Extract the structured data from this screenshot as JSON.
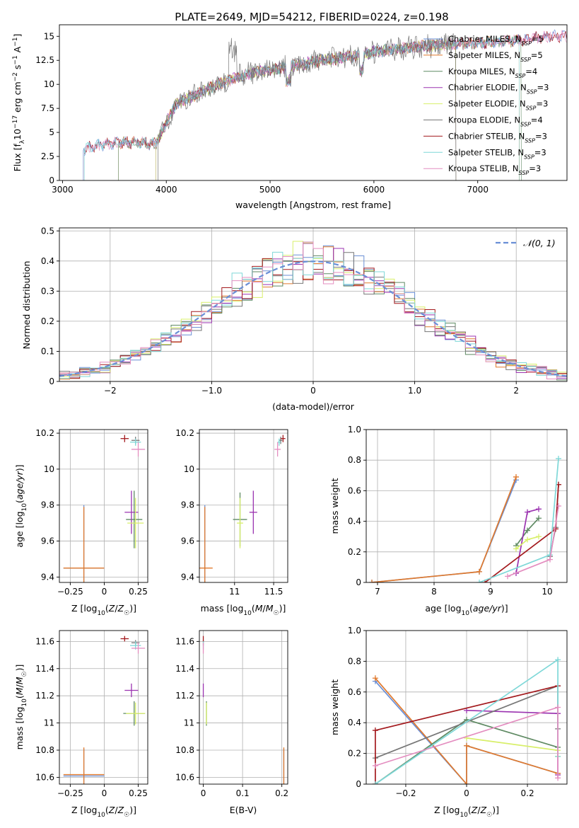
{
  "title": "PLATE=2649, MJD=54212, FIBERID=0224, z=0.198",
  "colors": [
    "#6a8fd6",
    "#e07a2e",
    "#5f8a63",
    "#9b33b0",
    "#d8ef6a",
    "#777777",
    "#a3191d",
    "#7fd8d8",
    "#e48ec0"
  ],
  "chart_data": [
    {
      "id": "spectrum",
      "type": "line",
      "xlabel": "wavelength [Angstrom, rest frame]",
      "ylabel": "Flux [f_λ 10^-17 erg cm^-2 s^-1 A^-1]",
      "xlim": [
        2970,
        7860
      ],
      "ylim": [
        0,
        16.2
      ],
      "xticks": [
        3000,
        4000,
        5000,
        6000,
        7000
      ],
      "yticks": [
        0.0,
        2.5,
        5.0,
        7.5,
        10.0,
        12.5,
        15.0
      ],
      "grid": false,
      "legend_position": "top-right",
      "profile_x": [
        3200,
        3300,
        3600,
        3900,
        4000,
        4100,
        4300,
        4500,
        4700,
        4860,
        5000,
        5200,
        5500,
        5800,
        6000,
        6300,
        6600,
        7000,
        7400,
        7700
      ],
      "profile_y": [
        3.2,
        3.6,
        4.0,
        3.8,
        6.0,
        8.0,
        9.0,
        10.0,
        10.8,
        11.3,
        11.5,
        11.9,
        12.5,
        12.9,
        13.4,
        13.8,
        14.1,
        14.3,
        14.6,
        15.0
      ],
      "series": [
        {
          "name": "Chabrier MILES, N_SSP=5",
          "start": 3200,
          "end": 7860
        },
        {
          "name": "Salpeter MILES, N_SSP=5",
          "start": 3540,
          "end": 7400
        },
        {
          "name": "Kroupa MILES, N_SSP=4",
          "start": 3540,
          "end": 7420
        },
        {
          "name": "Chabrier ELODIE, N_SSP=3",
          "start": 3900,
          "end": 6790
        },
        {
          "name": "Salpeter ELODIE, N_SSP=3",
          "start": 3900,
          "end": 6790
        },
        {
          "name": "Kroupa ELODIE, N_SSP=4",
          "start": 3920,
          "end": 6790
        },
        {
          "name": "Chabrier STELIB, N_SSP=3",
          "start": 3210,
          "end": 7860
        },
        {
          "name": "Salpeter STELIB, N_SSP=3",
          "start": 3210,
          "end": 7400
        },
        {
          "name": "Kroupa STELIB, N_SSP=3",
          "start": 3210,
          "end": 7860
        }
      ]
    },
    {
      "id": "residuals",
      "type": "histogram",
      "xlabel": "(data-model)/error",
      "ylabel": "Normed distribution",
      "xlim": [
        -2.5,
        2.5
      ],
      "ylim": [
        0,
        0.51
      ],
      "xticks": [
        -2,
        -1,
        0,
        1,
        2
      ],
      "yticks": [
        0.0,
        0.1,
        0.2,
        0.3,
        0.4,
        0.5
      ],
      "grid": true,
      "legend_position": "top-right",
      "reference_curve": {
        "name": "𝒩(0, 1)",
        "mean": 0,
        "sigma": 1
      },
      "bin_width": 0.1
    },
    {
      "id": "age-vs-Z",
      "type": "errorbar",
      "xlabel": "Z [log10(Z/Z☉)]",
      "ylabel": "age [log10(age/yr)]",
      "xlim": [
        -0.33,
        0.32
      ],
      "ylim": [
        9.37,
        10.22
      ],
      "xticks": [
        -0.25,
        0.0,
        0.25
      ],
      "yticks": [
        9.4,
        9.6,
        9.8,
        10.0,
        10.2
      ],
      "grid": true,
      "points": [
        {
          "x": -0.15,
          "y": 9.45,
          "xerr": 0.15,
          "yerr": 0.35,
          "c": 0
        },
        {
          "x": -0.15,
          "y": 9.45,
          "xerr": 0.15,
          "yerr": 0.34,
          "c": 1
        },
        {
          "x": 0.22,
          "y": 9.72,
          "xerr": 0.06,
          "yerr": 0.16,
          "c": 2
        },
        {
          "x": 0.2,
          "y": 9.76,
          "xerr": 0.05,
          "yerr": 0.12,
          "c": 3
        },
        {
          "x": 0.23,
          "y": 9.7,
          "xerr": 0.06,
          "yerr": 0.14,
          "c": 4
        },
        {
          "x": 0.23,
          "y": 10.16,
          "xerr": 0.03,
          "yerr": 0.02,
          "c": 5
        },
        {
          "x": 0.15,
          "y": 10.17,
          "xerr": 0.03,
          "yerr": 0.02,
          "c": 6
        },
        {
          "x": 0.23,
          "y": 10.15,
          "xerr": 0.04,
          "yerr": 0.02,
          "c": 7
        },
        {
          "x": 0.25,
          "y": 10.11,
          "xerr": 0.05,
          "yerr": 0.04,
          "c": 8
        }
      ]
    },
    {
      "id": "age-vs-mass",
      "type": "errorbar",
      "xlabel": "mass [log10(M/M☉)]",
      "ylabel": "",
      "xlim": [
        10.55,
        11.68
      ],
      "ylim": [
        9.37,
        10.22
      ],
      "xticks": [
        11.0,
        11.5
      ],
      "yticks": [
        9.4,
        9.6,
        9.8,
        10.0,
        10.2
      ],
      "grid": true,
      "points": [
        {
          "x": 10.62,
          "y": 9.45,
          "xerr": 0.01,
          "yerr": 0.35,
          "c": 0
        },
        {
          "x": 10.62,
          "y": 9.45,
          "xerr": 0.1,
          "yerr": 0.34,
          "c": 1
        },
        {
          "x": 11.07,
          "y": 9.72,
          "xerr": 0.09,
          "yerr": 0.15,
          "c": 2
        },
        {
          "x": 11.24,
          "y": 9.76,
          "xerr": 0.05,
          "yerr": 0.12,
          "c": 3
        },
        {
          "x": 11.07,
          "y": 9.7,
          "xerr": 0.04,
          "yerr": 0.14,
          "c": 4
        },
        {
          "x": 11.59,
          "y": 10.16,
          "xerr": 0.02,
          "yerr": 0.02,
          "c": 5
        },
        {
          "x": 11.62,
          "y": 10.17,
          "xerr": 0.03,
          "yerr": 0.02,
          "c": 6
        },
        {
          "x": 11.57,
          "y": 10.15,
          "xerr": 0.02,
          "yerr": 0.02,
          "c": 7
        },
        {
          "x": 11.55,
          "y": 10.11,
          "xerr": 0.04,
          "yerr": 0.04,
          "c": 8
        }
      ]
    },
    {
      "id": "mass-vs-Z",
      "type": "errorbar",
      "xlabel": "Z [log10(Z/Z☉)]",
      "ylabel": "mass [log10(M/M☉)]",
      "xlim": [
        -0.33,
        0.32
      ],
      "ylim": [
        10.55,
        11.68
      ],
      "xticks": [
        -0.25,
        0.0,
        0.25
      ],
      "yticks": [
        10.6,
        10.8,
        11.0,
        11.2,
        11.4,
        11.6
      ],
      "grid": true,
      "points": [
        {
          "x": -0.15,
          "y": 10.61,
          "xerr": 0.15,
          "yerr": 0.2,
          "c": 0
        },
        {
          "x": -0.15,
          "y": 10.62,
          "xerr": 0.15,
          "yerr": 0.2,
          "c": 1
        },
        {
          "x": 0.22,
          "y": 11.07,
          "xerr": 0.08,
          "yerr": 0.09,
          "c": 2
        },
        {
          "x": 0.2,
          "y": 11.24,
          "xerr": 0.05,
          "yerr": 0.05,
          "c": 3
        },
        {
          "x": 0.23,
          "y": 11.07,
          "xerr": 0.07,
          "yerr": 0.08,
          "c": 4
        },
        {
          "x": 0.23,
          "y": 11.59,
          "xerr": 0.03,
          "yerr": 0.02,
          "c": 5
        },
        {
          "x": 0.15,
          "y": 11.62,
          "xerr": 0.03,
          "yerr": 0.02,
          "c": 6
        },
        {
          "x": 0.23,
          "y": 11.57,
          "xerr": 0.04,
          "yerr": 0.03,
          "c": 7
        },
        {
          "x": 0.25,
          "y": 11.55,
          "xerr": 0.05,
          "yerr": 0.04,
          "c": 8
        }
      ]
    },
    {
      "id": "mass-vs-EBV",
      "type": "errorbar",
      "xlabel": "E(B-V)",
      "ylabel": "",
      "xlim": [
        -0.01,
        0.215
      ],
      "ylim": [
        10.55,
        11.68
      ],
      "xticks": [
        0.0,
        0.1,
        0.2
      ],
      "yticks": [
        10.6,
        10.8,
        11.0,
        11.2,
        11.4,
        11.6
      ],
      "grid": true,
      "points": [
        {
          "x": 0.205,
          "y": 10.61,
          "xerr": 0.0,
          "yerr": 0.2,
          "c": 0
        },
        {
          "x": 0.205,
          "y": 10.62,
          "xerr": 0.0,
          "yerr": 0.2,
          "c": 1
        },
        {
          "x": 0.008,
          "y": 11.07,
          "xerr": 0.0,
          "yerr": 0.09,
          "c": 2
        },
        {
          "x": 0.0,
          "y": 11.24,
          "xerr": 0.0,
          "yerr": 0.05,
          "c": 3
        },
        {
          "x": 0.008,
          "y": 11.07,
          "xerr": 0.0,
          "yerr": 0.08,
          "c": 4
        },
        {
          "x": 0.0,
          "y": 11.59,
          "xerr": 0.0,
          "yerr": 0.02,
          "c": 5
        },
        {
          "x": 0.0,
          "y": 11.62,
          "xerr": 0.0,
          "yerr": 0.02,
          "c": 6
        },
        {
          "x": 0.0,
          "y": 11.57,
          "xerr": 0.0,
          "yerr": 0.03,
          "c": 7
        },
        {
          "x": 0.0,
          "y": 11.55,
          "xerr": 0.0,
          "yerr": 0.04,
          "c": 8
        }
      ]
    },
    {
      "id": "weight-vs-age",
      "type": "line",
      "xlabel": "age [log10(age/yr)]",
      "ylabel": "mass weight",
      "xlim": [
        6.8,
        10.35
      ],
      "ylim": [
        0,
        1.0
      ],
      "xticks": [
        7,
        8,
        9,
        10
      ],
      "yticks": [
        0.0,
        0.2,
        0.4,
        0.6,
        0.8,
        1.0
      ],
      "grid": true,
      "series": [
        {
          "c": 0,
          "x": [
            6.9,
            8.8,
            9.45
          ],
          "y": [
            0.0,
            0.07,
            0.67
          ]
        },
        {
          "c": 1,
          "x": [
            6.9,
            8.8,
            9.45
          ],
          "y": [
            0.0,
            0.07,
            0.69
          ]
        },
        {
          "c": 2,
          "x": [
            9.45,
            9.65,
            9.85
          ],
          "y": [
            0.24,
            0.34,
            0.42
          ]
        },
        {
          "c": 3,
          "x": [
            9.45,
            9.65,
            9.85
          ],
          "y": [
            0.06,
            0.46,
            0.48
          ]
        },
        {
          "c": 4,
          "x": [
            9.45,
            9.65,
            9.85
          ],
          "y": [
            0.22,
            0.28,
            0.3
          ]
        },
        {
          "c": 5,
          "x": [
            10.05,
            10.15,
            10.2
          ],
          "y": [
            0.17,
            0.36,
            0.64
          ]
        },
        {
          "c": 6,
          "x": [
            8.9,
            10.15,
            10.2
          ],
          "y": [
            0.0,
            0.35,
            0.64
          ]
        },
        {
          "c": 7,
          "x": [
            8.8,
            10.05,
            10.2
          ],
          "y": [
            0.0,
            0.18,
            0.81
          ]
        },
        {
          "c": 8,
          "x": [
            9.3,
            10.05,
            10.2
          ],
          "y": [
            0.04,
            0.15,
            0.5
          ]
        }
      ]
    },
    {
      "id": "weight-vs-Z",
      "type": "line",
      "xlabel": "Z [log10(Z/Z☉)]",
      "ylabel": "mass weight",
      "xlim": [
        -0.33,
        0.33
      ],
      "ylim": [
        0,
        1.0
      ],
      "xticks": [
        -0.2,
        0.0,
        0.2
      ],
      "yticks": [
        0.0,
        0.2,
        0.4,
        0.6,
        0.8,
        1.0
      ],
      "grid": true,
      "series": [
        {
          "c": 0,
          "x": [
            -0.3,
            0.0,
            0.0,
            0.3
          ],
          "y": [
            0.67,
            0.0,
            0.25,
            0.07
          ]
        },
        {
          "c": 1,
          "x": [
            -0.3,
            0.0,
            0.0,
            0.3
          ],
          "y": [
            0.69,
            0.0,
            0.25,
            0.07
          ]
        },
        {
          "c": 2,
          "x": [
            -0.3,
            0.0,
            0.3
          ],
          "y": [
            0.0,
            0.42,
            0.24
          ]
        },
        {
          "c": 3,
          "x": [
            0.0,
            0.3,
            0.3
          ],
          "y": [
            0.48,
            0.46,
            0.06
          ]
        },
        {
          "c": 4,
          "x": [
            0.0,
            0.3,
            0.3
          ],
          "y": [
            0.3,
            0.22,
            0.18
          ]
        },
        {
          "c": 5,
          "x": [
            -0.3,
            0.3,
            0.3
          ],
          "y": [
            0.17,
            0.64,
            0.36
          ]
        },
        {
          "c": 6,
          "x": [
            -0.3,
            -0.3,
            0.3
          ],
          "y": [
            0.0,
            0.35,
            0.64
          ]
        },
        {
          "c": 7,
          "x": [
            -0.3,
            0.3,
            0.3
          ],
          "y": [
            0.0,
            0.81,
            0.18
          ]
        },
        {
          "c": 8,
          "x": [
            -0.3,
            0.3,
            0.3
          ],
          "y": [
            0.12,
            0.5,
            0.04
          ]
        }
      ]
    }
  ]
}
